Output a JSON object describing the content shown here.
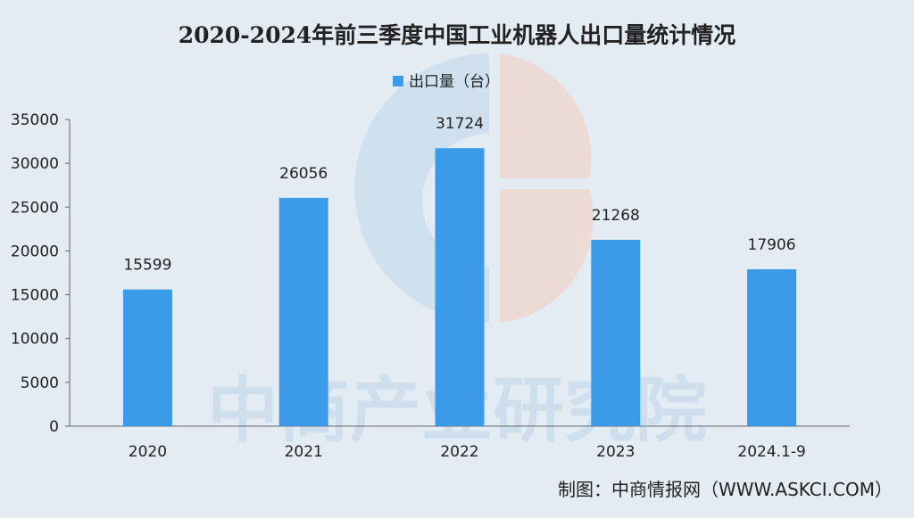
{
  "chart_data": {
    "type": "bar",
    "title": "2020-2024年前三季度中国工业机器人出口量统计情况",
    "categories": [
      "2020",
      "2021",
      "2022",
      "2023",
      "2024.1-9"
    ],
    "series": [
      {
        "name": "出口量（台）",
        "values": [
          15599,
          26056,
          31724,
          21268,
          17906
        ]
      }
    ],
    "data_labels": [
      "15599",
      "26056",
      "31724",
      "21268",
      "17906"
    ],
    "yticks": [
      "0",
      "5000",
      "10000",
      "15000",
      "20000",
      "25000",
      "30000",
      "35000"
    ],
    "ylim": [
      0,
      35000
    ],
    "xlabel": "",
    "ylabel": "",
    "legend_position": "top-center",
    "grid": false,
    "colors": {
      "bar": "#3b9be8",
      "background": "#e3ebf3",
      "axis": "#555555",
      "text": "#222222"
    }
  },
  "watermark": {
    "text": "中商产业研究院"
  },
  "source": {
    "text": "制图：中商情报网（WWW.ASKCI.COM）"
  }
}
